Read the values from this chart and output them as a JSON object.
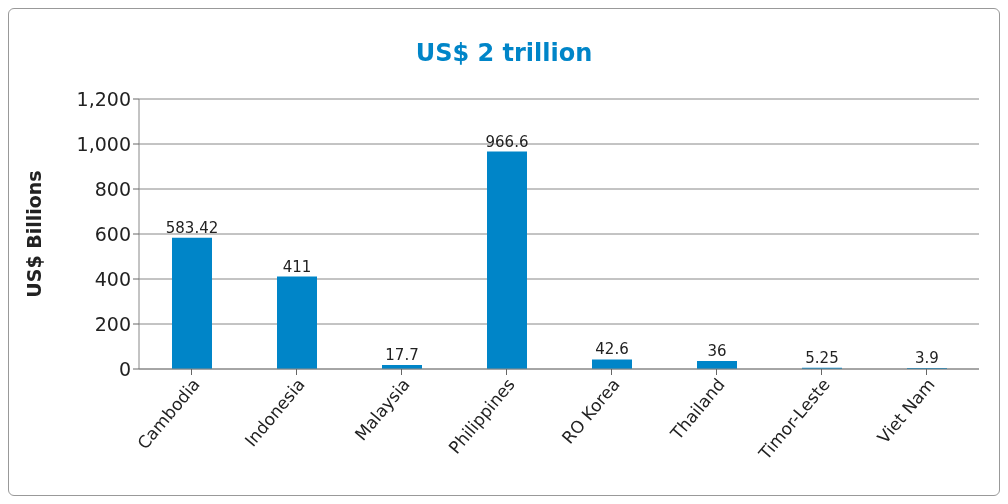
{
  "chart_data": {
    "type": "bar",
    "title": "US$ 2 trillion",
    "ylabel": "US$ Billions",
    "categories": [
      "Cambodia",
      "Indonesia",
      "Malaysia",
      "Philippines",
      "RO Korea",
      "Thailand",
      "Timor-Leste",
      "Viet Nam"
    ],
    "values": [
      583.42,
      411,
      17.7,
      966.6,
      42.6,
      36,
      5.25,
      3.9
    ],
    "color": "#0085c8",
    "ylim": [
      0,
      1200
    ],
    "yticks": [
      0,
      200,
      400,
      600,
      800,
      {
        "value": 1000,
        "label": "1,000"
      },
      {
        "value": 1200,
        "label": "1,200"
      }
    ],
    "grid": "y",
    "data_labels": true
  }
}
